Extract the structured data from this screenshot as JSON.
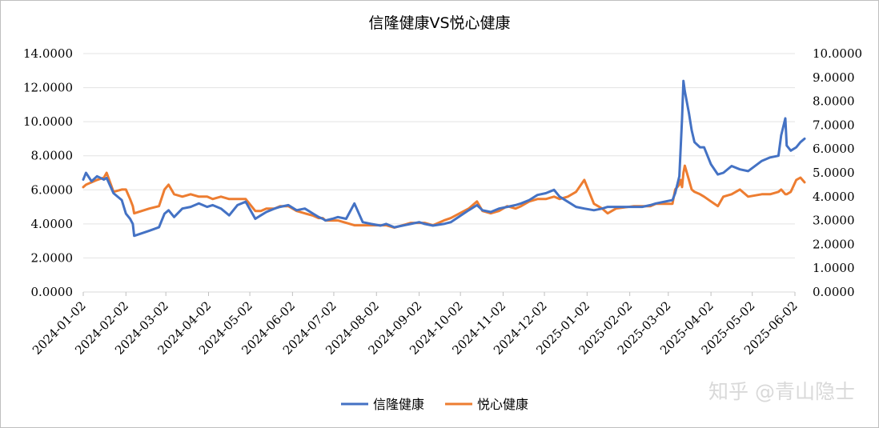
{
  "chart_data": {
    "type": "line",
    "title": "信隆健康VS悦心健康",
    "xlabel": "",
    "ylabel_left": "",
    "ylabel_right": "",
    "ylim_left": [
      0,
      14
    ],
    "ylim_right": [
      0,
      10
    ],
    "yticks_left": [
      "0.0000",
      "2.0000",
      "4.0000",
      "6.0000",
      "8.0000",
      "10.0000",
      "12.0000",
      "14.0000"
    ],
    "yticks_right": [
      "0.0000",
      "1.0000",
      "2.0000",
      "3.0000",
      "4.0000",
      "5.0000",
      "6.0000",
      "7.0000",
      "8.0000",
      "9.0000",
      "10.0000"
    ],
    "xticks": [
      "2024-01-02",
      "2024-02-02",
      "2024-03-02",
      "2024-04-02",
      "2024-05-02",
      "2024-06-02",
      "2024-07-02",
      "2024-08-02",
      "2024-09-02",
      "2024-10-02",
      "2024-11-02",
      "2024-12-02",
      "2025-01-02",
      "2025-02-02",
      "2025-03-02",
      "2025-04-02",
      "2025-05-02",
      "2025-06-02"
    ],
    "grid": true,
    "legend_position": "bottom",
    "series": [
      {
        "name": "信隆健康",
        "axis": "left",
        "color": "#4472C4",
        "x": [
          "2024-01-02",
          "2024-01-04",
          "2024-01-08",
          "2024-01-12",
          "2024-01-17",
          "2024-01-19",
          "2024-01-24",
          "2024-01-30",
          "2024-02-02",
          "2024-02-05",
          "2024-02-07",
          "2024-02-08",
          "2024-02-19",
          "2024-02-26",
          "2024-03-01",
          "2024-03-04",
          "2024-03-08",
          "2024-03-14",
          "2024-03-20",
          "2024-03-26",
          "2024-04-01",
          "2024-04-05",
          "2024-04-11",
          "2024-04-17",
          "2024-04-23",
          "2024-04-29",
          "2024-05-06",
          "2024-05-10",
          "2024-05-14",
          "2024-05-20",
          "2024-05-24",
          "2024-05-30",
          "2024-06-05",
          "2024-06-11",
          "2024-06-17",
          "2024-06-21",
          "2024-06-24",
          "2024-06-26",
          "2024-07-01",
          "2024-07-05",
          "2024-07-11",
          "2024-07-17",
          "2024-07-23",
          "2024-07-29",
          "2024-08-05",
          "2024-08-09",
          "2024-08-15",
          "2024-08-21",
          "2024-08-27",
          "2024-09-02",
          "2024-09-06",
          "2024-09-12",
          "2024-09-20",
          "2024-09-25",
          "2024-10-08",
          "2024-10-14",
          "2024-10-18",
          "2024-10-24",
          "2024-10-30",
          "2024-11-05",
          "2024-11-11",
          "2024-11-15",
          "2024-11-21",
          "2024-11-27",
          "2024-12-03",
          "2024-12-09",
          "2024-12-13",
          "2024-12-19",
          "2024-12-25",
          "2024-12-31",
          "2025-01-07",
          "2025-01-13",
          "2025-01-17",
          "2025-01-23",
          "2025-02-05",
          "2025-02-11",
          "2025-02-17",
          "2025-02-21",
          "2025-02-27",
          "2025-03-05",
          "2025-03-07",
          "2025-03-10",
          "2025-03-11",
          "2025-03-12",
          "2025-03-13",
          "2025-03-14",
          "2025-03-17",
          "2025-03-19",
          "2025-03-21",
          "2025-03-25",
          "2025-03-28",
          "2025-04-02",
          "2025-04-07",
          "2025-04-11",
          "2025-04-17",
          "2025-04-23",
          "2025-04-29",
          "2025-05-09",
          "2025-05-15",
          "2025-05-21",
          "2025-05-23",
          "2025-05-26",
          "2025-05-27",
          "2025-05-30",
          "2025-06-03",
          "2025-06-06",
          "2025-06-09"
        ],
        "values": [
          6.6,
          7.0,
          6.5,
          6.8,
          6.6,
          6.7,
          5.8,
          5.4,
          4.6,
          4.3,
          4.0,
          3.3,
          3.6,
          3.8,
          4.6,
          4.8,
          4.4,
          4.9,
          5.0,
          5.2,
          5.0,
          5.1,
          4.9,
          4.5,
          5.1,
          5.3,
          4.3,
          4.5,
          4.7,
          4.9,
          5.0,
          5.1,
          4.8,
          4.9,
          4.6,
          4.4,
          4.3,
          4.2,
          4.3,
          4.4,
          4.3,
          5.2,
          4.1,
          4.0,
          3.9,
          4.0,
          3.8,
          3.9,
          4.0,
          4.1,
          4.0,
          3.9,
          4.0,
          4.1,
          4.8,
          5.1,
          4.8,
          4.7,
          4.9,
          5.0,
          5.1,
          5.2,
          5.4,
          5.7,
          5.8,
          6.0,
          5.6,
          5.3,
          5.0,
          4.9,
          4.8,
          4.9,
          5.0,
          5.0,
          5.0,
          5.0,
          5.1,
          5.2,
          5.3,
          5.4,
          5.8,
          6.8,
          8.5,
          10.2,
          12.4,
          11.8,
          10.5,
          9.5,
          8.8,
          8.5,
          8.5,
          7.5,
          6.9,
          7.0,
          7.4,
          7.2,
          7.1,
          7.7,
          7.9,
          8.0,
          9.2,
          10.2,
          8.6,
          8.3,
          8.5,
          8.8,
          9.0
        ]
      },
      {
        "name": "悦心健康",
        "axis": "right",
        "color": "#ED7D31",
        "x": [
          "2024-01-02",
          "2024-01-04",
          "2024-01-08",
          "2024-01-12",
          "2024-01-17",
          "2024-01-19",
          "2024-01-24",
          "2024-01-30",
          "2024-02-02",
          "2024-02-05",
          "2024-02-07",
          "2024-02-08",
          "2024-02-19",
          "2024-02-26",
          "2024-03-01",
          "2024-03-04",
          "2024-03-08",
          "2024-03-14",
          "2024-03-20",
          "2024-03-26",
          "2024-04-01",
          "2024-04-05",
          "2024-04-11",
          "2024-04-17",
          "2024-04-23",
          "2024-04-29",
          "2024-05-06",
          "2024-05-10",
          "2024-05-14",
          "2024-05-20",
          "2024-05-24",
          "2024-05-30",
          "2024-06-05",
          "2024-06-11",
          "2024-06-17",
          "2024-06-21",
          "2024-06-24",
          "2024-06-26",
          "2024-07-01",
          "2024-07-05",
          "2024-07-11",
          "2024-07-17",
          "2024-07-23",
          "2024-07-29",
          "2024-08-05",
          "2024-08-09",
          "2024-08-15",
          "2024-08-21",
          "2024-08-27",
          "2024-09-02",
          "2024-09-06",
          "2024-09-12",
          "2024-09-20",
          "2024-09-25",
          "2024-10-08",
          "2024-10-14",
          "2024-10-18",
          "2024-10-24",
          "2024-10-30",
          "2024-11-05",
          "2024-11-11",
          "2024-11-15",
          "2024-11-21",
          "2024-11-27",
          "2024-12-03",
          "2024-12-09",
          "2024-12-13",
          "2024-12-19",
          "2024-12-25",
          "2024-12-31",
          "2025-01-07",
          "2025-01-13",
          "2025-01-17",
          "2025-01-23",
          "2025-02-05",
          "2025-02-11",
          "2025-02-17",
          "2025-02-21",
          "2025-02-27",
          "2025-03-05",
          "2025-03-07",
          "2025-03-10",
          "2025-03-11",
          "2025-03-12",
          "2025-03-13",
          "2025-03-14",
          "2025-03-17",
          "2025-03-19",
          "2025-03-21",
          "2025-03-25",
          "2025-03-28",
          "2025-04-02",
          "2025-04-07",
          "2025-04-11",
          "2025-04-17",
          "2025-04-23",
          "2025-04-29",
          "2025-05-09",
          "2025-05-15",
          "2025-05-21",
          "2025-05-23",
          "2025-05-26",
          "2025-05-27",
          "2025-05-30",
          "2025-06-03",
          "2025-06-06",
          "2025-06-09"
        ],
        "values": [
          4.4,
          4.5,
          4.6,
          4.7,
          4.8,
          5.0,
          4.2,
          4.3,
          4.3,
          3.9,
          3.6,
          3.3,
          3.5,
          3.6,
          4.3,
          4.5,
          4.1,
          4.0,
          4.1,
          4.0,
          4.0,
          3.9,
          4.0,
          3.9,
          3.9,
          3.9,
          3.4,
          3.4,
          3.5,
          3.5,
          3.6,
          3.6,
          3.4,
          3.3,
          3.2,
          3.1,
          3.1,
          3.0,
          3.0,
          3.0,
          2.9,
          2.8,
          2.8,
          2.8,
          2.8,
          2.8,
          2.7,
          2.8,
          2.9,
          2.9,
          2.9,
          2.8,
          3.0,
          3.1,
          3.5,
          3.8,
          3.4,
          3.3,
          3.4,
          3.6,
          3.5,
          3.6,
          3.8,
          3.9,
          3.9,
          4.0,
          3.9,
          4.0,
          4.2,
          4.7,
          3.7,
          3.5,
          3.3,
          3.5,
          3.6,
          3.6,
          3.6,
          3.7,
          3.7,
          3.7,
          4.3,
          4.5,
          4.7,
          4.4,
          5.0,
          5.3,
          4.7,
          4.3,
          4.2,
          4.1,
          4.0,
          3.8,
          3.6,
          4.0,
          4.1,
          4.3,
          4.0,
          4.1,
          4.1,
          4.2,
          4.3,
          4.1,
          4.1,
          4.2,
          4.7,
          4.8,
          4.6
        ]
      }
    ]
  },
  "watermark": "知乎 @青山隐士"
}
